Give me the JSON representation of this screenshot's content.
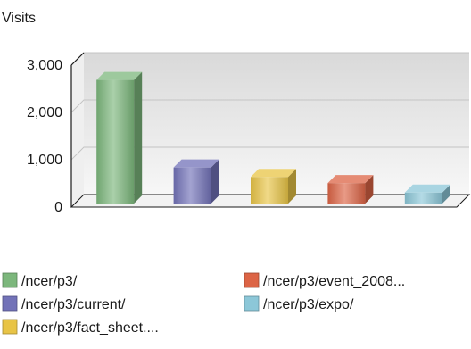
{
  "chart_data": {
    "type": "bar",
    "ylabel": "Visits",
    "categories": [
      "/ncer/p3/",
      "/ncer/p3/current/",
      "/ncer/p3/fact_sheet....",
      "/ncer/p3/event_2008...",
      "/ncer/p3/expo/"
    ],
    "values": [
      2800,
      950,
      750,
      620,
      420
    ],
    "ylim": [
      0,
      3000
    ],
    "yticks": [
      0,
      1000,
      2000,
      3000
    ],
    "ytick_labels": [
      "0",
      "1,000",
      "2,000",
      "3,000"
    ],
    "grid": true,
    "legend_position": "bottom",
    "colors": [
      "#7cb77c",
      "#7272b8",
      "#e8c446",
      "#dc6445",
      "#8cc7d8"
    ]
  }
}
